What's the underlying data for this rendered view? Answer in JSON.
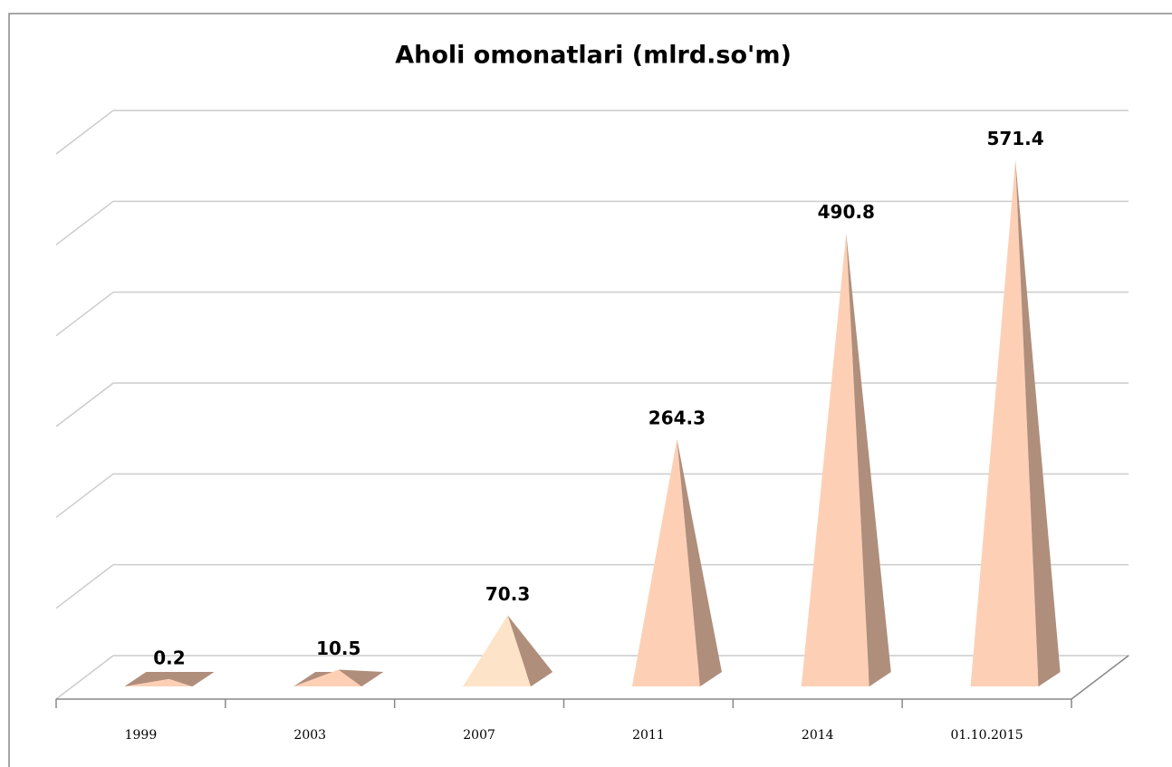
{
  "chart_data": {
    "type": "pyramid",
    "title": "Aholi omonatlari (mlrd.so'm)",
    "categories": [
      "1999",
      "2003",
      "2007",
      "2011",
      "2014",
      "01.10.2015"
    ],
    "values": [
      0.2,
      10.5,
      70.3,
      264.3,
      490.8,
      571.4
    ],
    "colors": [
      "#fdd0b5",
      "#fdd0b5",
      "#fde4c8",
      "#fdd0b5",
      "#fdd0b5",
      "#fdd0b5"
    ],
    "ylim": [
      0,
      600
    ],
    "yticks": [
      0,
      100,
      200,
      300,
      400,
      500,
      600
    ],
    "grid": true,
    "ytick_labels": false
  }
}
